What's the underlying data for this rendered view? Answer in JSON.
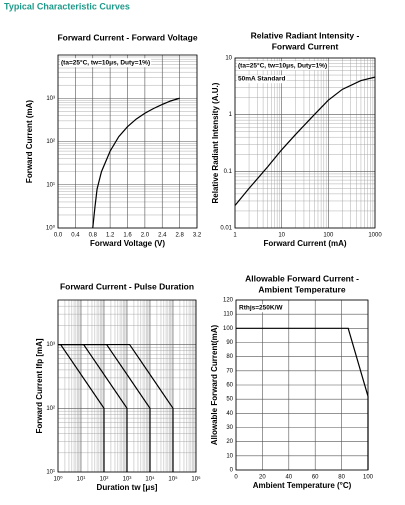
{
  "page_title": "Typical Characteristic Curves",
  "chart_data": [
    {
      "type": "line",
      "title": "Forward Current - Forward Voltage",
      "xlabel": "Forward Voltage (V)",
      "ylabel": "Forward Current (mA)",
      "annotations": [
        "(ta=25°C, tw=10μs, Duty=1%)"
      ],
      "ylog": true,
      "grid": true,
      "xlim": [
        0,
        3.2
      ],
      "ylim": [
        1,
        10000
      ],
      "xticks": [
        {
          "value": 0,
          "label": "0.0"
        },
        0.4,
        0.8,
        1.2,
        1.6,
        {
          "value": 2,
          "label": "2.0"
        },
        2.4,
        2.8,
        3.2
      ],
      "yticks": [
        {
          "value": 1,
          "label": "10⁰"
        },
        {
          "value": 10,
          "label": "10¹"
        },
        {
          "value": 100,
          "label": "10²"
        },
        {
          "value": 1000,
          "label": "10³"
        }
      ],
      "series": [
        {
          "color": "#000000",
          "x": [
            0.8,
            0.85,
            0.9,
            1.0,
            1.2,
            1.4,
            1.6,
            1.8,
            2.0,
            2.2,
            2.4,
            2.6,
            2.8
          ],
          "values": [
            1,
            3,
            8,
            20,
            60,
            130,
            220,
            330,
            450,
            580,
            720,
            870,
            1000
          ]
        }
      ]
    },
    {
      "type": "line",
      "title": [
        "Relative Radiant Intensity -",
        "Forward Current"
      ],
      "xlabel": "Forward Current (mA)",
      "ylabel": "Relative Radiant Intensity (A.U.)",
      "annotations": [
        "(ta=25°C, tw=10μs, Duty=1%)",
        "50mA Standard"
      ],
      "xlog": true,
      "ylog": true,
      "grid": true,
      "xlim": [
        1,
        1000
      ],
      "ylim": [
        0.01,
        10
      ],
      "xticks": [
        1,
        10,
        100,
        1000
      ],
      "yticks": [
        0.01,
        0.1,
        1,
        10
      ],
      "series": [
        {
          "color": "#000000",
          "x": [
            1,
            2,
            5,
            10,
            20,
            50,
            100,
            200,
            500,
            1000
          ],
          "values": [
            0.025,
            0.05,
            0.12,
            0.24,
            0.45,
            1,
            1.8,
            2.8,
            4,
            4.6
          ]
        }
      ]
    },
    {
      "type": "line",
      "title": "Forward Current - Pulse Duration",
      "xlabel": "Duration tw [μs]",
      "ylabel": "Forward Current Ifp [mA]",
      "annotations": [],
      "xlog": true,
      "ylog": true,
      "grid": true,
      "xlim": [
        1,
        1000000
      ],
      "ylim": [
        10,
        5000
      ],
      "xticks": [
        {
          "value": 1,
          "label": "10⁰"
        },
        {
          "value": 10,
          "label": "10¹"
        },
        {
          "value": 100,
          "label": "10²"
        },
        {
          "value": 1000,
          "label": "10³"
        },
        {
          "value": 10000,
          "label": "10⁴"
        },
        {
          "value": 100000,
          "label": "10⁵"
        },
        {
          "value": 1000000,
          "label": "10⁶"
        }
      ],
      "yticks": [
        {
          "value": 10,
          "label": "10¹"
        },
        {
          "value": 100,
          "label": "10²"
        },
        {
          "value": 1000,
          "label": "10³"
        }
      ],
      "series": [
        {
          "color": "#000000",
          "x": [
            1,
            1.3,
            100,
            100
          ],
          "values": [
            1000,
            1000,
            100,
            10
          ]
        },
        {
          "color": "#000000",
          "x": [
            1,
            13,
            1000,
            1000
          ],
          "values": [
            1000,
            1000,
            100,
            10
          ]
        },
        {
          "color": "#000000",
          "x": [
            1,
            130,
            10000,
            10000
          ],
          "values": [
            1000,
            1000,
            100,
            10
          ]
        },
        {
          "color": "#000000",
          "x": [
            1,
            1300,
            100000,
            100000
          ],
          "values": [
            1000,
            1000,
            100,
            10
          ]
        }
      ]
    },
    {
      "type": "line",
      "title": [
        "Allowable Forward Current -",
        "Ambient Temperature"
      ],
      "xlabel": "Ambient Temperature (°C)",
      "ylabel": "Allowable Forward Current(mA)",
      "annotations": [
        "Rthjs=250K/W"
      ],
      "grid": true,
      "xlim": [
        0,
        100
      ],
      "ylim": [
        0,
        120
      ],
      "xticks": [
        0,
        20,
        40,
        60,
        80,
        100
      ],
      "yticks": [
        0,
        10,
        20,
        30,
        40,
        50,
        60,
        70,
        80,
        90,
        100,
        110,
        120
      ],
      "series": [
        {
          "color": "#000000",
          "x": [
            0,
            85,
            100,
            100
          ],
          "values": [
            100,
            100,
            52,
            0
          ]
        }
      ]
    }
  ]
}
